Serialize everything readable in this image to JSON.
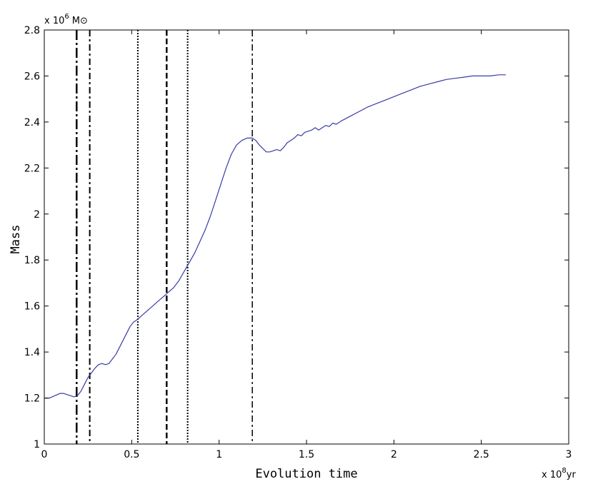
{
  "chart_data": {
    "type": "line",
    "title": "",
    "xlabel": "Evolution time",
    "ylabel": "Mass",
    "x_multiplier": {
      "base": "x 10",
      "exp": "8",
      "unit": "yr"
    },
    "y_multiplier": {
      "base": "x 10",
      "exp": "6",
      "unit": "M⊙"
    },
    "xlim": [
      0,
      3
    ],
    "ylim": [
      1,
      2.8
    ],
    "xticks": [
      0,
      0.5,
      1,
      1.5,
      2,
      2.5,
      3
    ],
    "xtick_labels": [
      "0",
      "0.5",
      "1",
      "1.5",
      "2",
      "2.5",
      "3"
    ],
    "yticks": [
      1,
      1.2,
      1.4,
      1.6,
      1.8,
      2,
      2.2,
      2.4,
      2.6,
      2.8
    ],
    "ytick_labels": [
      "1",
      "1.2",
      "1.4",
      "1.6",
      "1.8",
      "2",
      "2.2",
      "2.4",
      "2.6",
      "2.8"
    ],
    "grid": false,
    "legend": "none",
    "series": [
      {
        "color": "#3a3aa8",
        "x": [
          0,
          0.03,
          0.06,
          0.09,
          0.11,
          0.13,
          0.15,
          0.17,
          0.19,
          0.21,
          0.23,
          0.25,
          0.27,
          0.29,
          0.31,
          0.33,
          0.35,
          0.37,
          0.39,
          0.41,
          0.43,
          0.45,
          0.47,
          0.49,
          0.51,
          0.53,
          0.56,
          0.59,
          0.62,
          0.65,
          0.68,
          0.71,
          0.74,
          0.77,
          0.8,
          0.83,
          0.86,
          0.89,
          0.92,
          0.95,
          0.98,
          1.01,
          1.04,
          1.07,
          1.1,
          1.13,
          1.16,
          1.19,
          1.21,
          1.23,
          1.25,
          1.27,
          1.29,
          1.31,
          1.33,
          1.35,
          1.37,
          1.39,
          1.41,
          1.43,
          1.45,
          1.47,
          1.49,
          1.51,
          1.53,
          1.55,
          1.57,
          1.59,
          1.61,
          1.63,
          1.65,
          1.67,
          1.7,
          1.75,
          1.8,
          1.85,
          1.9,
          1.95,
          2.0,
          2.05,
          2.1,
          2.15,
          2.2,
          2.25,
          2.3,
          2.35,
          2.4,
          2.45,
          2.5,
          2.55,
          2.6,
          2.64
        ],
        "y": [
          1.2,
          1.2,
          1.21,
          1.22,
          1.22,
          1.215,
          1.21,
          1.205,
          1.21,
          1.23,
          1.26,
          1.29,
          1.31,
          1.33,
          1.345,
          1.35,
          1.345,
          1.35,
          1.37,
          1.39,
          1.42,
          1.45,
          1.48,
          1.51,
          1.53,
          1.54,
          1.56,
          1.58,
          1.6,
          1.62,
          1.64,
          1.66,
          1.68,
          1.71,
          1.75,
          1.79,
          1.83,
          1.88,
          1.93,
          1.99,
          2.06,
          2.13,
          2.2,
          2.26,
          2.3,
          2.32,
          2.33,
          2.33,
          2.32,
          2.3,
          2.285,
          2.27,
          2.27,
          2.275,
          2.28,
          2.275,
          2.29,
          2.31,
          2.32,
          2.33,
          2.345,
          2.34,
          2.355,
          2.36,
          2.365,
          2.375,
          2.365,
          2.375,
          2.385,
          2.38,
          2.395,
          2.39,
          2.405,
          2.425,
          2.445,
          2.465,
          2.48,
          2.495,
          2.51,
          2.525,
          2.54,
          2.555,
          2.565,
          2.575,
          2.585,
          2.59,
          2.595,
          2.6,
          2.6,
          2.6,
          2.605,
          2.605
        ]
      }
    ],
    "vlines": [
      {
        "x": 0.185,
        "style": "dashdot-thick"
      },
      {
        "x": 0.26,
        "style": "dashdot"
      },
      {
        "x": 0.535,
        "style": "dotted"
      },
      {
        "x": 0.7,
        "style": "dashed"
      },
      {
        "x": 0.82,
        "style": "dotted"
      },
      {
        "x": 1.19,
        "style": "dashdot-thin"
      }
    ]
  }
}
